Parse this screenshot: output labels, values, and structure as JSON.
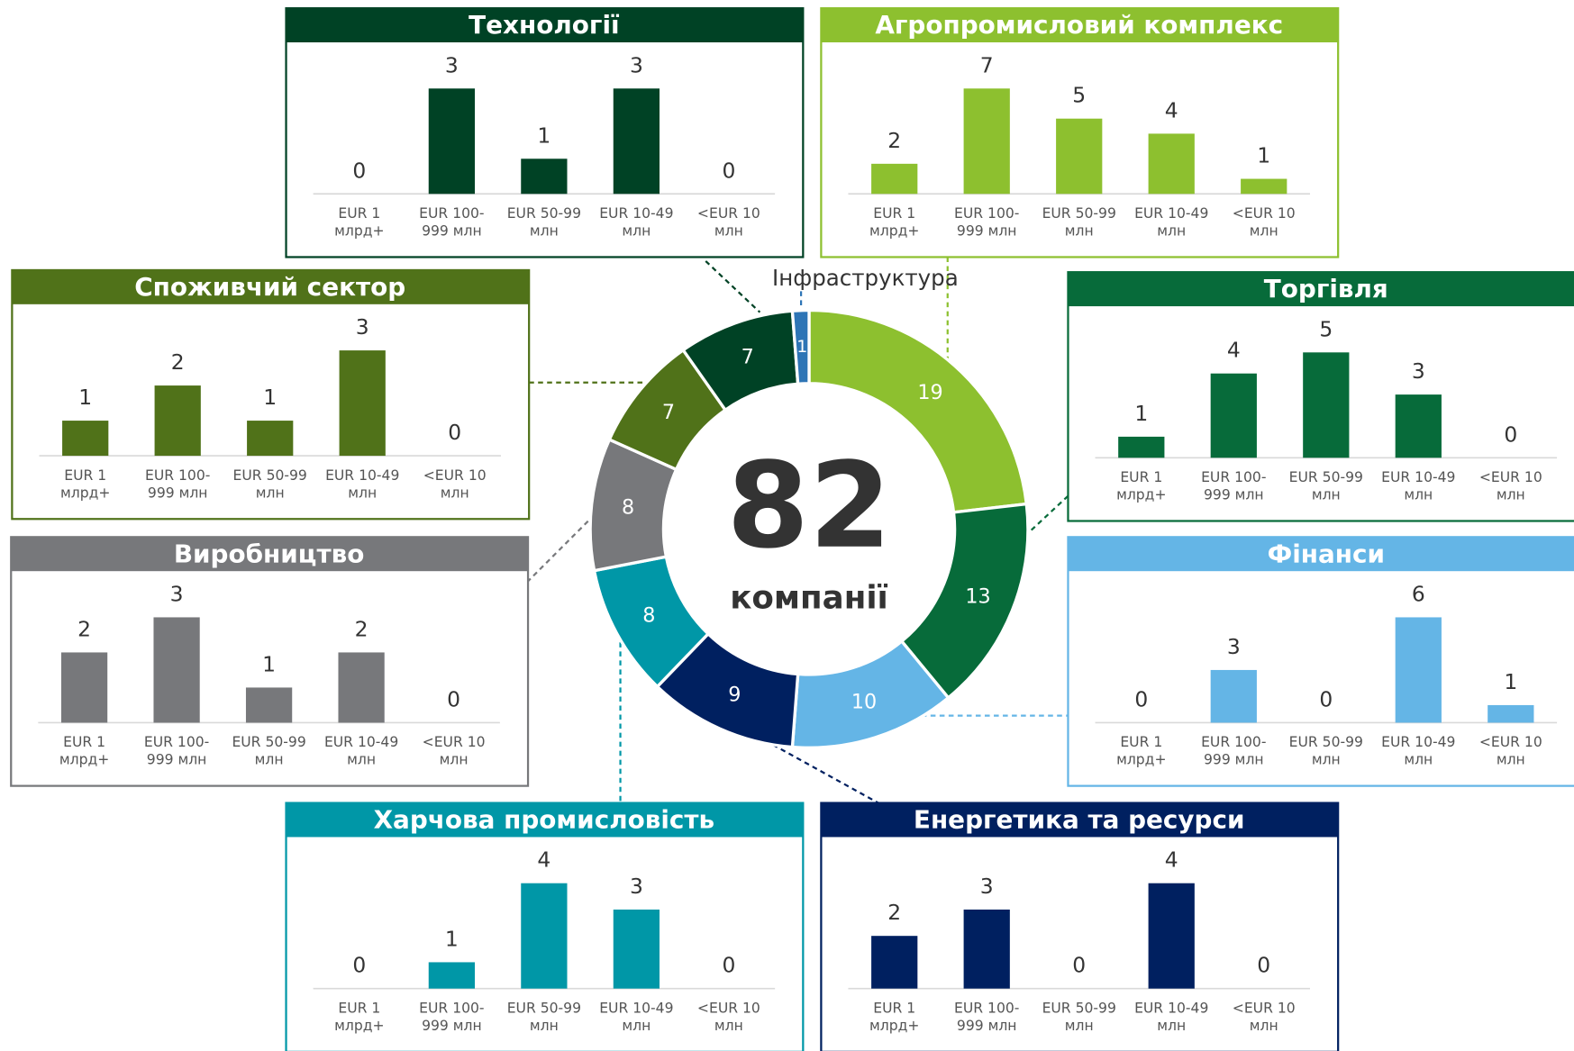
{
  "chart_data": [
    {
      "type": "donut",
      "total": 82,
      "total_label": "компанії",
      "categories": [
        null,
        null,
        null,
        null,
        null,
        null,
        null,
        null,
        "Інфраструктура"
      ],
      "values": [
        19,
        13,
        10,
        9,
        8,
        8,
        7,
        7,
        1
      ],
      "colors": [
        "#8dc02f",
        "#076b3a",
        "#64b5e6",
        "#002060",
        "#0097a7",
        "#77787b",
        "#507219",
        "#004225",
        "#2e75b6"
      ]
    },
    {
      "type": "bar",
      "title": "Технології",
      "color": "#004225",
      "categories": [
        "EUR 1\nмлрд+",
        "EUR 100-\n999 млн",
        "EUR 50-99\nмлн",
        "EUR 10-49\nмлн",
        "<EUR 10\nмлн"
      ],
      "values": [
        0,
        3,
        1,
        3,
        0
      ],
      "ylim": [
        0,
        3
      ]
    },
    {
      "type": "bar",
      "title": "Агропромисловий комплекс",
      "color": "#8dc02f",
      "categories": [
        "EUR 1\nмлрд+",
        "EUR 100-\n999 млн",
        "EUR 50-99\nмлн",
        "EUR 10-49\nмлн",
        "<EUR 10\nмлн"
      ],
      "values": [
        2,
        7,
        5,
        4,
        1
      ],
      "ylim": [
        0,
        7
      ]
    },
    {
      "type": "bar",
      "title": "Споживчий сектор",
      "color": "#507219",
      "categories": [
        "EUR 1\nмлрд+",
        "EUR 100-\n999 млн",
        "EUR 50-99\nмлн",
        "EUR 10-49\nмлн",
        "<EUR 10\nмлн"
      ],
      "values": [
        1,
        2,
        1,
        3,
        0
      ],
      "ylim": [
        0,
        3
      ]
    },
    {
      "type": "bar",
      "title": "Торгівля",
      "color": "#076b3a",
      "categories": [
        "EUR 1\nмлрд+",
        "EUR 100-\n999 млн",
        "EUR 50-99\nмлн",
        "EUR 10-49\nмлн",
        "<EUR 10\nмлн"
      ],
      "values": [
        1,
        4,
        5,
        3,
        0
      ],
      "ylim": [
        0,
        5
      ]
    },
    {
      "type": "bar",
      "title": "Виробництво",
      "color": "#77787b",
      "categories": [
        "EUR 1\nмлрд+",
        "EUR 100-\n999 млн",
        "EUR 50-99\nмлн",
        "EUR 10-49\nмлн",
        "<EUR 10\nмлн"
      ],
      "values": [
        2,
        3,
        1,
        2,
        0
      ],
      "ylim": [
        0,
        3
      ]
    },
    {
      "type": "bar",
      "title": "Фінанси",
      "color": "#64b5e6",
      "categories": [
        "EUR 1\nмлрд+",
        "EUR 100-\n999 млн",
        "EUR 50-99\nмлн",
        "EUR 10-49\nмлн",
        "<EUR 10\nмлн"
      ],
      "values": [
        0,
        3,
        0,
        6,
        1
      ],
      "ylim": [
        0,
        6
      ]
    },
    {
      "type": "bar",
      "title": "Харчова промисловість",
      "color": "#0097a7",
      "categories": [
        "EUR 1\nмлрд+",
        "EUR 100-\n999 млн",
        "EUR 50-99\nмлн",
        "EUR 10-49\nмлн",
        "<EUR 10\nмлн"
      ],
      "values": [
        0,
        1,
        4,
        3,
        0
      ],
      "ylim": [
        0,
        4
      ]
    },
    {
      "type": "bar",
      "title": "Енергетика та ресурси",
      "color": "#002060",
      "categories": [
        "EUR 1\nмлрд+",
        "EUR 100-\n999 млн",
        "EUR 50-99\nмлн",
        "EUR 10-49\nмлн",
        "<EUR 10\nмлн"
      ],
      "values": [
        2,
        3,
        0,
        4,
        0
      ],
      "ylim": [
        0,
        4
      ]
    }
  ]
}
